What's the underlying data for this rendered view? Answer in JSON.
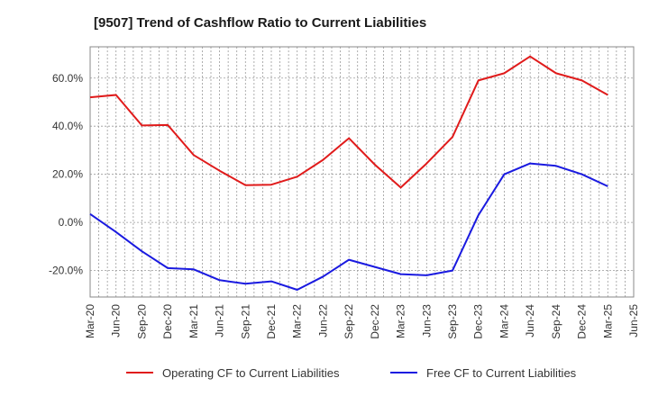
{
  "chart_data": {
    "type": "line",
    "title": "[9507]  Trend of Cashflow Ratio to Current Liabilities",
    "xlabel": "",
    "ylabel": "",
    "categories": [
      "Mar-20",
      "Jun-20",
      "Sep-20",
      "Dec-20",
      "Mar-21",
      "Jun-21",
      "Sep-21",
      "Dec-21",
      "Mar-22",
      "Jun-22",
      "Sep-22",
      "Dec-22",
      "Mar-23",
      "Jun-23",
      "Sep-23",
      "Dec-23",
      "Mar-24",
      "Jun-24",
      "Sep-24",
      "Dec-24",
      "Mar-25",
      "Jun-25"
    ],
    "y_ticks": [
      "-20.0%",
      "0.0%",
      "20.0%",
      "40.0%",
      "60.0%"
    ],
    "y_tick_values": [
      -20,
      0,
      20,
      40,
      60
    ],
    "ylim": [
      -31,
      73
    ],
    "grid": true,
    "legend_position": "bottom",
    "series": [
      {
        "name": "Operating CF to Current Liabilities",
        "color": "#e01b1b",
        "values": [
          52.0,
          53.0,
          40.3,
          40.5,
          28.0,
          21.5,
          15.5,
          15.7,
          19.0,
          26.0,
          35.0,
          24.0,
          14.5,
          24.5,
          35.5,
          59.0,
          62.0,
          69.0,
          62.0,
          59.0,
          53.0,
          null
        ]
      },
      {
        "name": "Free CF to Current Liabilities",
        "color": "#1a1ae0",
        "values": [
          3.5,
          -4.0,
          -12.0,
          -19.0,
          -19.5,
          -24.0,
          -25.5,
          -24.5,
          -28.0,
          -22.5,
          -15.5,
          -18.5,
          -21.5,
          -22.0,
          -20.0,
          3.0,
          20.0,
          24.5,
          23.5,
          20.0,
          15.0,
          null
        ]
      }
    ]
  }
}
